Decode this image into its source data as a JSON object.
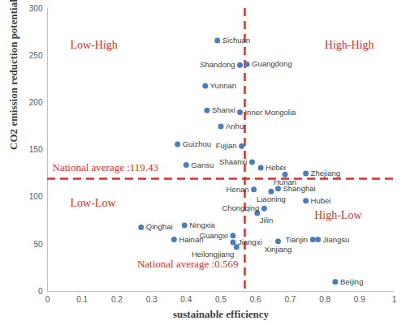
{
  "chart_data": {
    "type": "scatter",
    "xlabel": "sustainable efficiency",
    "ylabel": "CO2 emission reduction potential",
    "labels": [
      "Sichuan",
      "Shandong",
      "Guangdong",
      "Yunnan",
      "Shanxi",
      "Inner Mongolia",
      "Anhui",
      "Guizhou",
      "Fujian",
      "Gansu",
      "Shaanxi",
      "Hebei",
      "Hunan",
      "Zhejiang",
      "Henan",
      "Shanghai",
      "Liaoning",
      "Hubei",
      "Chongqing",
      "Jilin",
      "Qinghai",
      "Ningxia",
      "Guangxi",
      "Hainan",
      "Jiangxi",
      "Heilongjiang",
      "Xinjiang",
      "Tianjin",
      "Jiangsu",
      "Beijing"
    ],
    "x": [
      0.49,
      0.555,
      0.575,
      0.455,
      0.46,
      0.555,
      0.5,
      0.375,
      0.56,
      0.4,
      0.59,
      0.615,
      0.685,
      0.745,
      0.595,
      0.665,
      0.645,
      0.745,
      0.625,
      0.605,
      0.27,
      0.395,
      0.535,
      0.365,
      0.535,
      0.545,
      0.665,
      0.765,
      0.78,
      0.83
    ],
    "y": [
      266,
      240,
      241,
      218,
      192,
      190,
      175,
      156,
      154,
      134,
      137,
      131,
      124,
      125,
      108,
      109,
      106,
      96,
      88,
      83,
      68,
      70,
      59,
      55,
      52,
      47,
      53,
      55,
      55,
      10
    ],
    "color": "#4a7ebb",
    "marker": "circle",
    "xlim": [
      0,
      1
    ],
    "xticks": [
      0,
      0.1,
      0.2,
      0.3,
      0.4,
      0.5,
      0.6,
      0.7,
      0.8,
      0.9,
      1
    ],
    "ylim": [
      0,
      300
    ],
    "yticks": [
      0,
      50,
      100,
      150,
      200,
      250,
      300
    ],
    "grid": false,
    "reference_lines": [
      {
        "axis": "y",
        "value": 119.43,
        "label": "National average :119.43"
      },
      {
        "axis": "x",
        "value": 0.569,
        "label": "National average :0.569"
      }
    ],
    "annotations": [
      "Low-High",
      "High-High",
      "Low-Low",
      "High-Low"
    ]
  }
}
